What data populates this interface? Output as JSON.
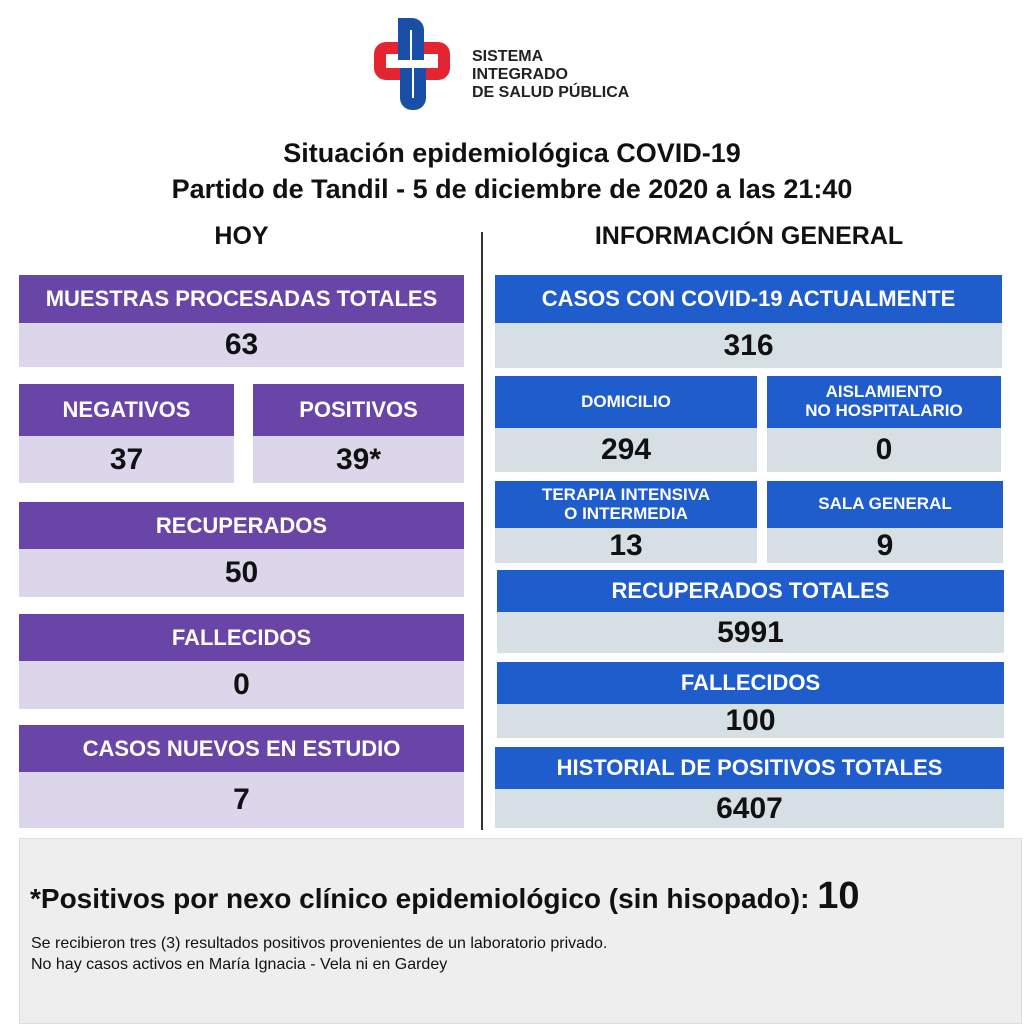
{
  "logo": {
    "line1": "SISTEMA INTEGRADO",
    "line2": "DE SALUD PÚBLICA",
    "colors": {
      "red": "#e52431",
      "blue": "#1a4fa8"
    }
  },
  "title": {
    "line1": "Situación epidemiológica COVID-19",
    "line2": "Partido de Tandil - 5 de diciembre de 2020 a las 21:40"
  },
  "hoy": {
    "heading": "HOY",
    "muestras": {
      "label": "MUESTRAS PROCESADAS TOTALES",
      "value": "63"
    },
    "negativos": {
      "label": "NEGATIVOS",
      "value": "37"
    },
    "positivos": {
      "label": "POSITIVOS",
      "value": "39*"
    },
    "recuperados": {
      "label": "RECUPERADOS",
      "value": "50"
    },
    "fallecidos": {
      "label": "FALLECIDOS",
      "value": "0"
    },
    "casos_nuevos": {
      "label": "CASOS NUEVOS EN ESTUDIO",
      "value": "7"
    }
  },
  "general": {
    "heading": "INFORMACIÓN GENERAL",
    "casos_actuales": {
      "label": "CASOS CON COVID-19 ACTUALMENTE",
      "value": "316"
    },
    "domicilio": {
      "label": "DOMICILIO",
      "value": "294"
    },
    "aislamiento": {
      "label1": "AISLAMIENTO",
      "label2": "NO HOSPITALARIO",
      "value": "0"
    },
    "terapia": {
      "label1": "TERAPIA INTENSIVA",
      "label2": "O INTERMEDIA",
      "value": "13"
    },
    "sala_general": {
      "label": "SALA GENERAL",
      "value": "9"
    },
    "recuperados_totales": {
      "label": "RECUPERADOS TOTALES",
      "value": "5991"
    },
    "fallecidos": {
      "label": "FALLECIDOS",
      "value": "100"
    },
    "historial": {
      "label": "HISTORIAL DE POSITIVOS TOTALES",
      "value": "6407"
    }
  },
  "footer": {
    "nexo_label": "*Positivos por nexo clínico epidemiológico (sin hisopado):",
    "nexo_value": "10",
    "note1": "Se recibieron tres (3) resultados positivos provenientes de un laboratorio privado.",
    "note2": "No hay casos activos en María Ignacia - Vela ni en Gardey"
  }
}
